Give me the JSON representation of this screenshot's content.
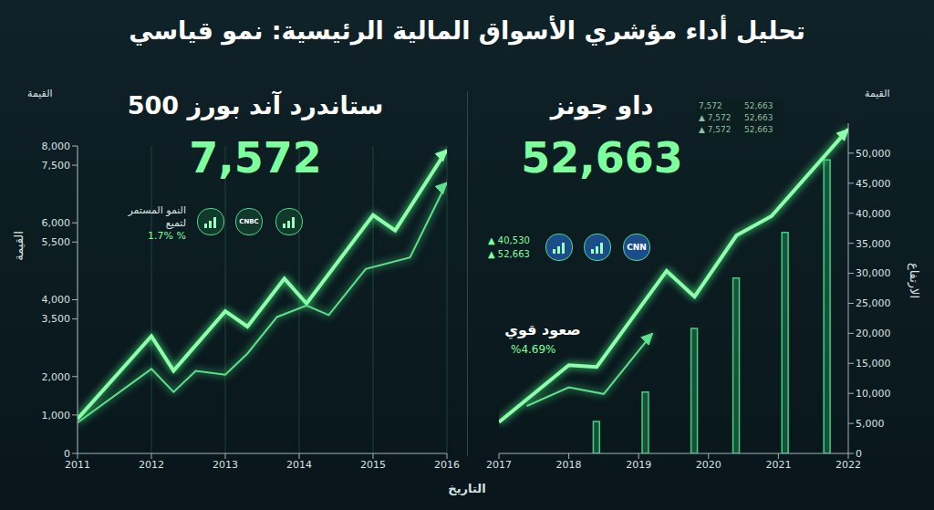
{
  "title": "تحليل أداء مؤشري الأسواق المالية الرئيسية: نمو قياسي",
  "xlabel": "التاريخ",
  "chart_data": [
    {
      "type": "line",
      "title": "ستاندرد آند بورز 500",
      "headline": "7,572",
      "badge": [
        "النمو المستمر",
        "لتميع",
        "% 1.7%"
      ],
      "logos": [
        "CNBC"
      ],
      "y_unit_label": "القيمة",
      "ylabel": "القيمة",
      "xlim": [
        2011,
        2016
      ],
      "xticks": [
        2011,
        2012,
        2013,
        2014,
        2015,
        2016
      ],
      "ylim": [
        0,
        8000
      ],
      "yticks": [
        0,
        {
          "value": 1000,
          "label": "1,000"
        },
        {
          "value": 2000,
          "label": "2,000"
        },
        {
          "value": 3500,
          "label": "3,500"
        },
        {
          "value": 4000,
          "label": "4,000"
        },
        {
          "value": 5500,
          "label": "5,500"
        },
        {
          "value": 6000,
          "label": "6,000"
        },
        {
          "value": 7500,
          "label": "7,500"
        },
        {
          "value": 8000,
          "label": "8,000"
        }
      ],
      "grid": true,
      "series": [
        {
          "type": "line",
          "color": "#8dffab",
          "marker": "arrow",
          "x": [
            2011,
            2012,
            2012.3,
            2013,
            2013.3,
            2013.8,
            2014.1,
            2015,
            2015.3,
            2016
          ],
          "values": [
            900,
            3050,
            2150,
            3700,
            3300,
            4550,
            3900,
            6200,
            5800,
            7900
          ]
        },
        {
          "type": "line",
          "color": "#5fe08c",
          "marker": "arrow",
          "x": [
            2011,
            2012,
            2012.3,
            2012.6,
            2013,
            2013.3,
            2013.7,
            2014.1,
            2014.4,
            2014.9,
            2015.5,
            2016
          ],
          "values": [
            800,
            2200,
            1600,
            2150,
            2050,
            2600,
            3550,
            3850,
            3600,
            4800,
            5100,
            7050
          ]
        }
      ]
    },
    {
      "type": "combo",
      "title": "داو جونز",
      "headline": "52,663",
      "tickers": [
        "▲ 40,530",
        "▲ 52,663"
      ],
      "logos": [
        "CNN"
      ],
      "annotation": "صعود قوي",
      "annotation_value": "%4.69%",
      "table": [
        [
          "7,572",
          "52,663"
        ],
        [
          "▲ 7,572",
          "52,663"
        ],
        [
          "▲ 7,572",
          "52,663"
        ]
      ],
      "y_unit_label": "القيمة",
      "ylabel": "الارتفاع",
      "xlim": [
        2017,
        2022
      ],
      "xticks": [
        2017,
        2018,
        2019,
        2020,
        2021,
        2022
      ],
      "ylim": [
        0,
        55000
      ],
      "yticks": [
        0,
        {
          "value": 5000,
          "label": "5,000"
        },
        {
          "value": 10000,
          "label": "10,000"
        },
        {
          "value": 15000,
          "label": "15,000"
        },
        {
          "value": 20000,
          "label": "20,000"
        },
        {
          "value": 25000,
          "label": "25,000"
        },
        {
          "value": 30000,
          "label": "30,000"
        },
        {
          "value": 35000,
          "label": "35,000"
        },
        {
          "value": 40000,
          "label": "40,000"
        },
        {
          "value": 45000,
          "label": "45,000"
        },
        {
          "value": 50000,
          "label": "50,000"
        }
      ],
      "grid": false,
      "series": [
        {
          "type": "bar",
          "color": "#3bd47f",
          "x": [
            2018.4,
            2019.1,
            2019.8,
            2020.4,
            2021.1,
            2021.7
          ],
          "values": [
            5300,
            10200,
            20800,
            29200,
            36800,
            48900
          ]
        },
        {
          "type": "line",
          "color": "#8dffab",
          "marker": "arrow",
          "x": [
            2017,
            2018,
            2018.4,
            2019.4,
            2019.8,
            2020.4,
            2020.9,
            2022
          ],
          "values": [
            5200,
            14700,
            14400,
            30400,
            26100,
            36300,
            39500,
            54000
          ]
        },
        {
          "type": "line",
          "color": "#5fe08c",
          "marker": "arrow",
          "x": [
            2017.4,
            2018,
            2018.5,
            2019.2
          ],
          "values": [
            7900,
            11000,
            9900,
            20000
          ]
        }
      ]
    }
  ]
}
